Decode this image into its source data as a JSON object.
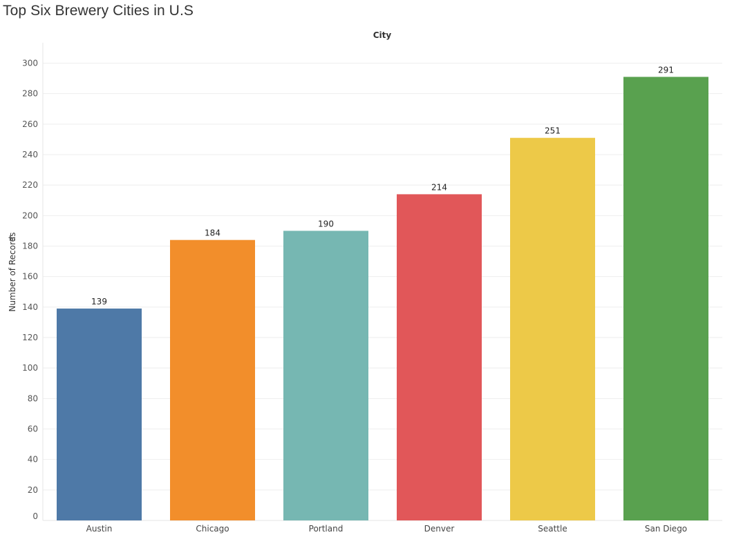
{
  "chart_data": {
    "type": "bar",
    "title": "Top Six Brewery Cities in U.S",
    "xlabel": "City",
    "ylabel": "Number of Records",
    "categories": [
      "Austin",
      "Chicago",
      "Portland",
      "Denver",
      "Seattle",
      "San Diego"
    ],
    "values": [
      139,
      184,
      190,
      214,
      251,
      291
    ],
    "colors": [
      "#4e79a7",
      "#f28e2b",
      "#76b7b2",
      "#e15759",
      "#edc948",
      "#59a14f"
    ],
    "y_ticks": [
      0,
      20,
      40,
      60,
      80,
      100,
      120,
      140,
      160,
      180,
      200,
      220,
      240,
      260,
      280,
      300
    ],
    "ylim": [
      0,
      300
    ],
    "grid": true,
    "data_labels": true,
    "legend": "none"
  }
}
